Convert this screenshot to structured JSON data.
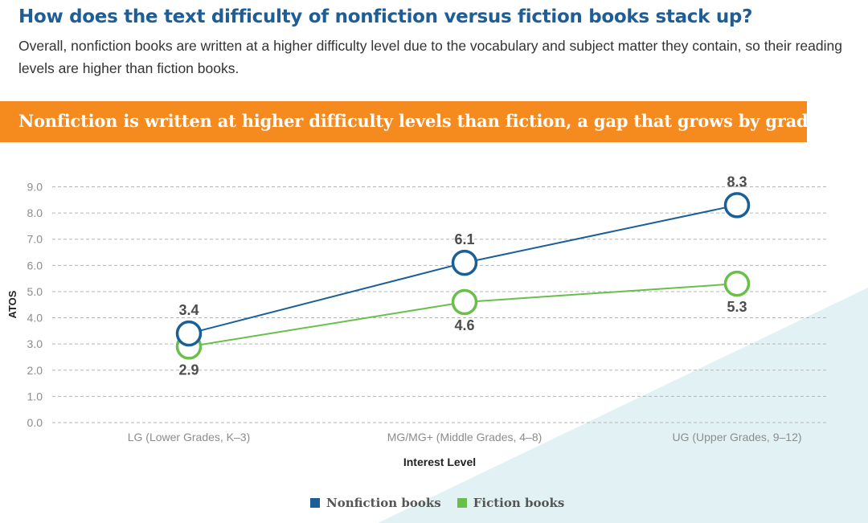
{
  "header": {
    "title": "How does the text difficulty of nonfiction versus fiction books stack up?",
    "subtitle": "Overall, nonfiction books are written at a higher difficulty level due to the vocabulary and subject matter they contain, so their reading levels are higher than fiction books."
  },
  "banner": {
    "text": "Nonfiction is written at higher difficulty levels than fiction, a gap that grows by grade"
  },
  "colors": {
    "title": "#1f5d96",
    "banner": "#f58a1f",
    "nonfiction": "#1a5f96",
    "fiction": "#6abf4b",
    "background_accent": "#e2f2f4"
  },
  "chart_data": {
    "type": "line",
    "title": "",
    "xlabel": "Interest Level",
    "ylabel": "ATOS",
    "ylim": [
      0,
      9
    ],
    "yticks": [
      "0.0",
      "1.0",
      "2.0",
      "3.0",
      "4.0",
      "5.0",
      "6.0",
      "7.0",
      "8.0",
      "9.0"
    ],
    "grid": true,
    "categories": [
      "LG (Lower Grades, K–3)",
      "MG/MG+ (Middle Grades, 4–8)",
      "UG (Upper Grades, 9–12)"
    ],
    "series": [
      {
        "name": "Nonfiction books",
        "values": [
          3.4,
          6.1,
          8.3
        ],
        "labels": [
          "3.4",
          "6.1",
          "8.3"
        ],
        "label_position": "above",
        "color": "#1a5f96"
      },
      {
        "name": "Fiction books",
        "values": [
          2.9,
          4.6,
          5.3
        ],
        "labels": [
          "2.9",
          "4.6",
          "5.3"
        ],
        "label_position": "below",
        "color": "#6abf4b"
      }
    ],
    "legend": "bottom-center"
  }
}
